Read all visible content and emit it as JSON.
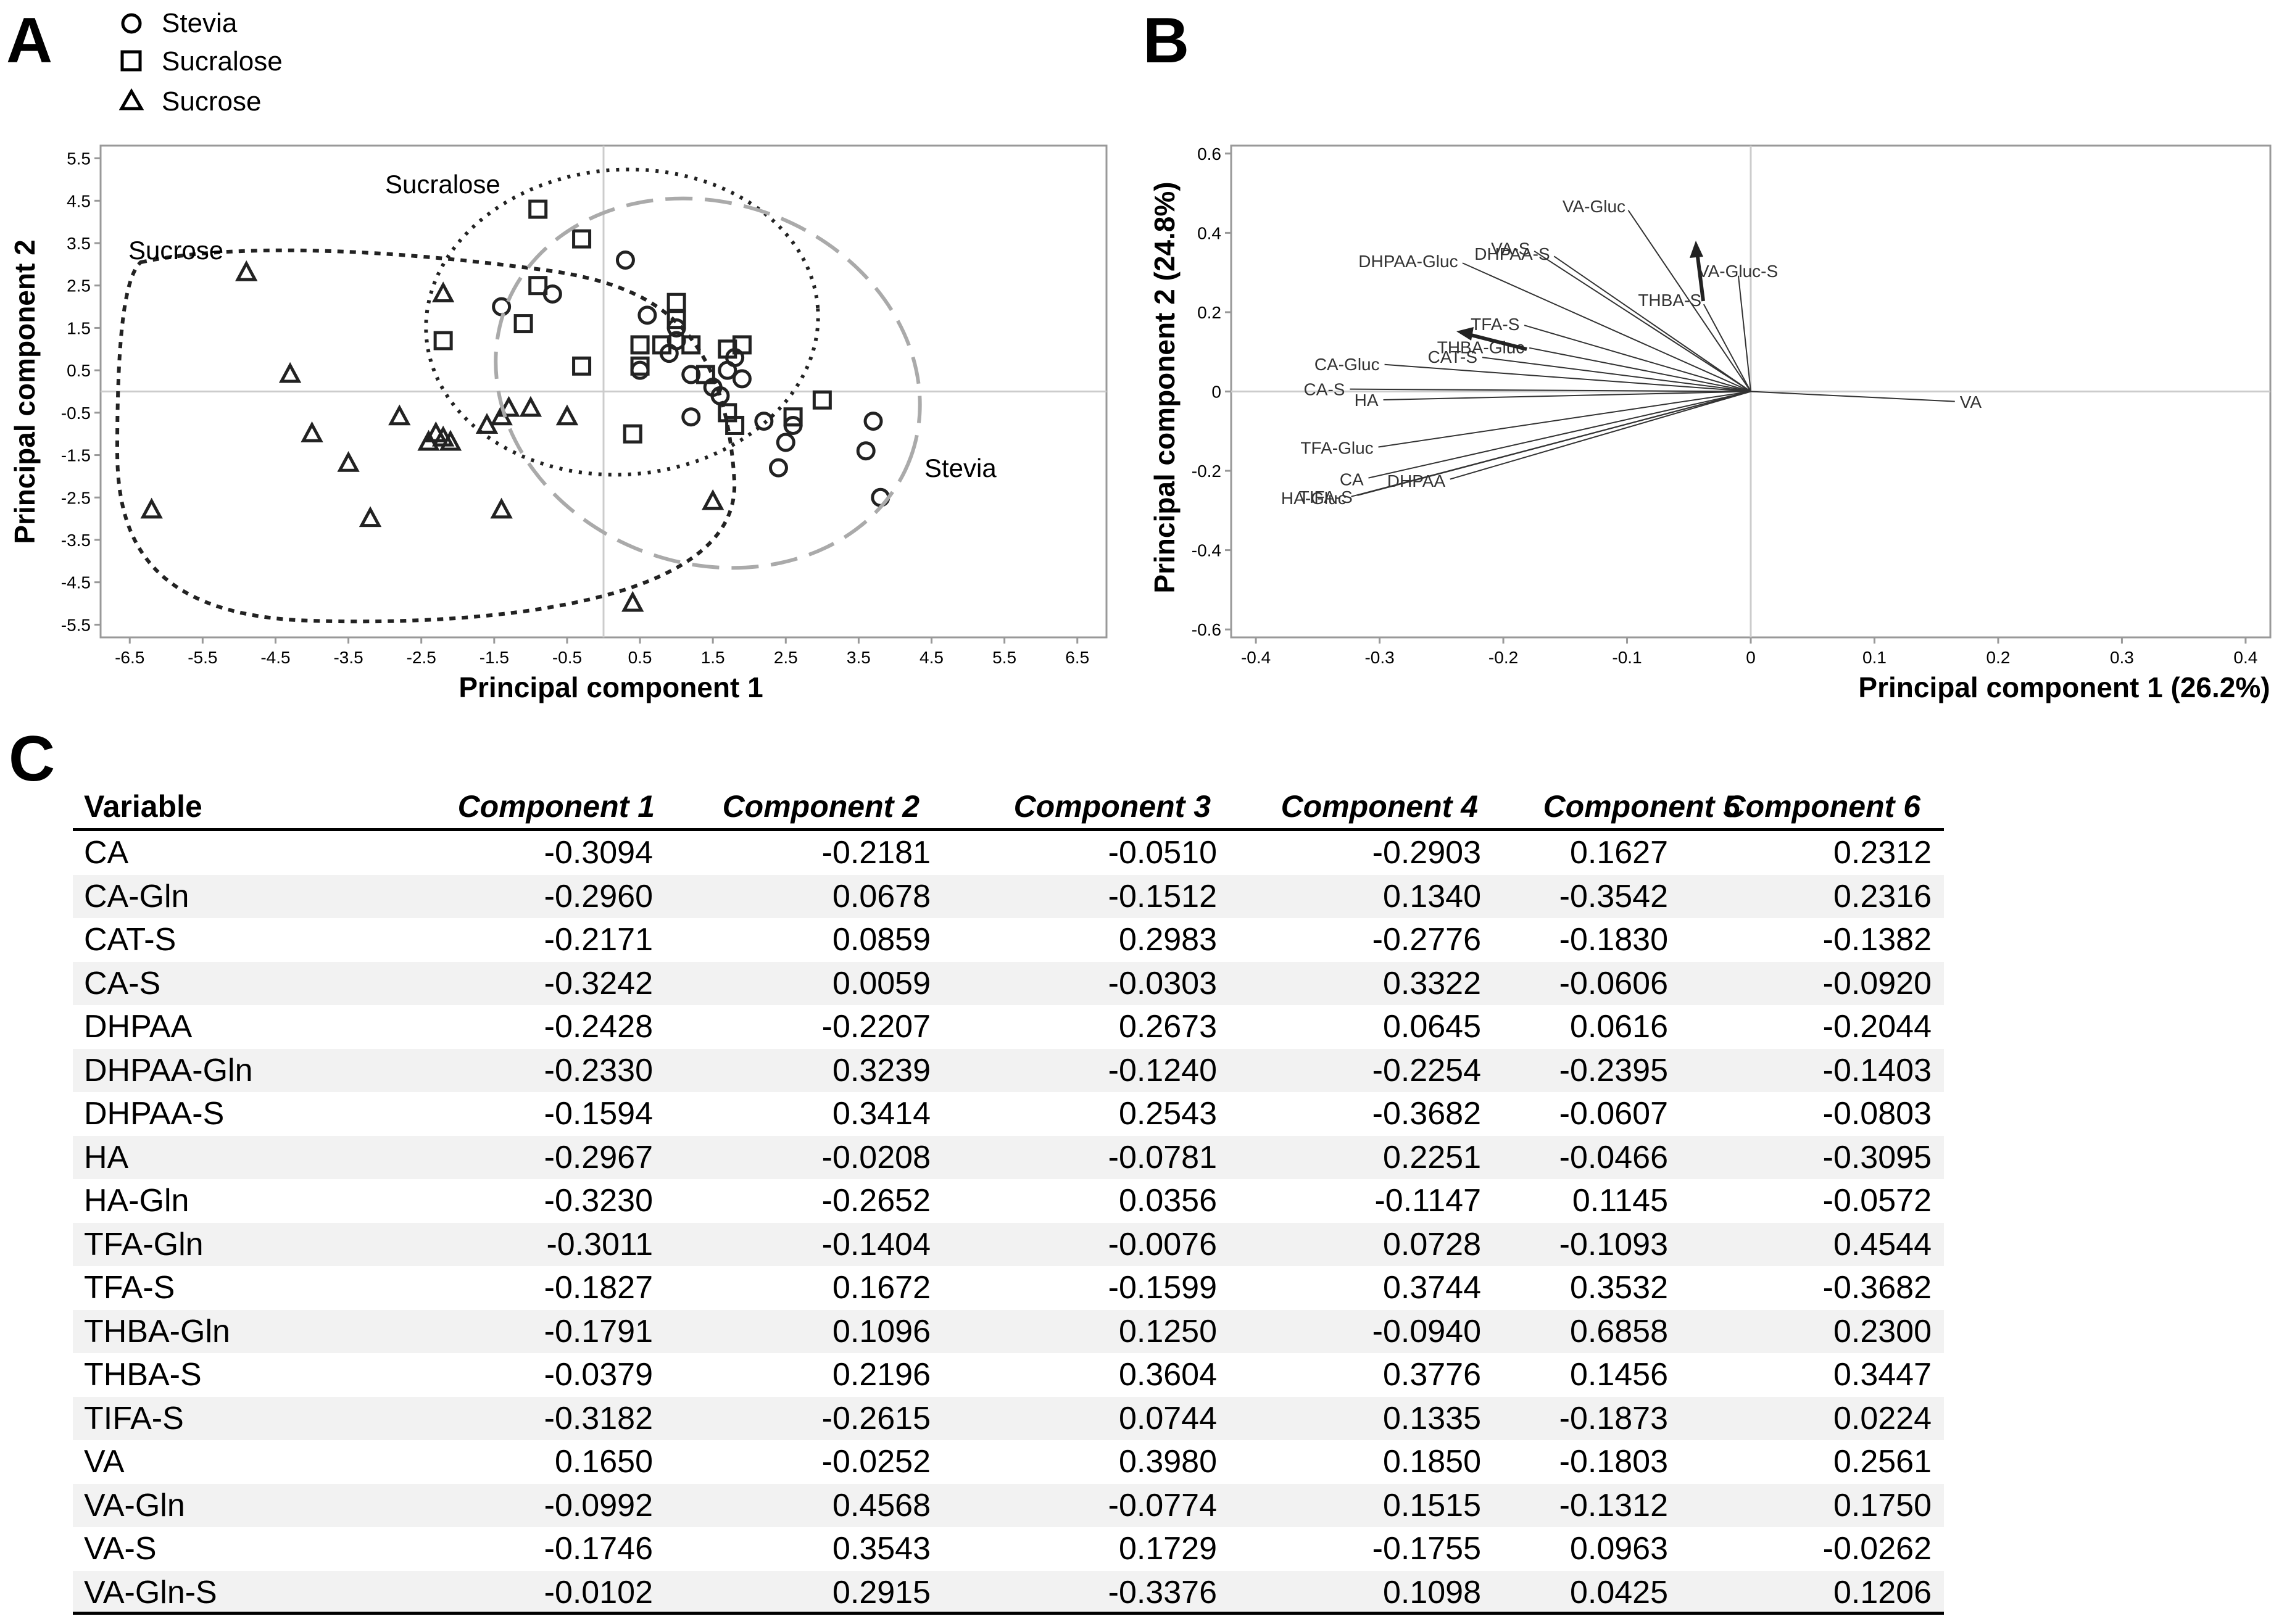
{
  "panels": {
    "a": "A",
    "b": "B",
    "c": "C"
  },
  "panelA": {
    "legend": [
      {
        "marker": "circle",
        "label": "Stevia"
      },
      {
        "marker": "square",
        "label": "Sucralose"
      },
      {
        "marker": "triangle",
        "label": "Sucrose"
      }
    ],
    "group_labels": {
      "sucrose": "Sucrose",
      "sucralose": "Sucralose",
      "stevia": "Stevia"
    }
  },
  "chart_data": [
    {
      "type": "scatter",
      "title": "",
      "xlabel": "Principal component 1",
      "ylabel": "Principal component 2",
      "xlim": [
        -6.9,
        6.9
      ],
      "ylim": [
        -5.8,
        5.8
      ],
      "xticks": [
        "-6.5",
        "-5.5",
        "-4.5",
        "-3.5",
        "-2.5",
        "-1.5",
        "-0.5",
        "0.5",
        "1.5",
        "2.5",
        "3.5",
        "4.5",
        "5.5",
        "6.5"
      ],
      "yticks": [
        "5.5",
        "4.5",
        "3.5",
        "2.5",
        "1.5",
        "0.5",
        "-0.5",
        "-1.5",
        "-2.5",
        "-3.5",
        "-4.5",
        "-5.5"
      ],
      "series": [
        {
          "name": "Stevia",
          "marker": "circle",
          "points": [
            [
              0.3,
              3.1
            ],
            [
              0.6,
              1.8
            ],
            [
              -1.4,
              2.0
            ],
            [
              -0.7,
              2.3
            ],
            [
              1.0,
              1.5
            ],
            [
              1.0,
              1.2
            ],
            [
              0.9,
              0.9
            ],
            [
              1.2,
              0.4
            ],
            [
              0.5,
              0.5
            ],
            [
              1.8,
              0.8
            ],
            [
              1.7,
              0.5
            ],
            [
              1.9,
              0.3
            ],
            [
              1.5,
              0.1
            ],
            [
              1.6,
              -0.1
            ],
            [
              1.2,
              -0.6
            ],
            [
              2.2,
              -0.7
            ],
            [
              2.6,
              -0.8
            ],
            [
              2.5,
              -1.2
            ],
            [
              2.4,
              -1.8
            ],
            [
              3.7,
              -0.7
            ],
            [
              3.6,
              -1.4
            ],
            [
              3.8,
              -2.5
            ]
          ]
        },
        {
          "name": "Sucralose",
          "marker": "square",
          "points": [
            [
              -0.9,
              4.3
            ],
            [
              -0.3,
              3.6
            ],
            [
              -0.9,
              2.5
            ],
            [
              -1.1,
              1.6
            ],
            [
              -2.2,
              1.2
            ],
            [
              -0.3,
              0.6
            ],
            [
              0.4,
              -1.0
            ],
            [
              0.5,
              0.6
            ],
            [
              0.5,
              1.1
            ],
            [
              0.8,
              1.1
            ],
            [
              1.0,
              1.7
            ],
            [
              1.0,
              2.1
            ],
            [
              1.2,
              1.1
            ],
            [
              1.4,
              0.4
            ],
            [
              1.7,
              1.0
            ],
            [
              1.9,
              1.1
            ],
            [
              1.7,
              -0.5
            ],
            [
              1.8,
              -0.8
            ],
            [
              2.6,
              -0.6
            ],
            [
              3.0,
              -0.2
            ]
          ]
        },
        {
          "name": "Sucrose",
          "marker": "triangle",
          "points": [
            [
              -4.9,
              2.8
            ],
            [
              -2.2,
              2.3
            ],
            [
              -4.3,
              0.4
            ],
            [
              -4.0,
              -1.0
            ],
            [
              -3.5,
              -1.7
            ],
            [
              -3.2,
              -3.0
            ],
            [
              -2.8,
              -0.6
            ],
            [
              -2.3,
              -1.0
            ],
            [
              -2.2,
              -1.1
            ],
            [
              -2.1,
              -1.2
            ],
            [
              -2.4,
              -1.2
            ],
            [
              -1.6,
              -0.8
            ],
            [
              -1.4,
              -0.6
            ],
            [
              -1.3,
              -0.4
            ],
            [
              -1.0,
              -0.4
            ],
            [
              -0.5,
              -0.6
            ],
            [
              -1.4,
              -2.8
            ],
            [
              -6.2,
              -2.8
            ],
            [
              1.5,
              -2.6
            ],
            [
              0.4,
              -5.0
            ]
          ]
        }
      ]
    },
    {
      "type": "biplot",
      "title": "",
      "xlabel": "Principal component 1 (26.2%)",
      "ylabel": "Principal component 2 (24.8%)",
      "xlim": [
        -0.42,
        0.42
      ],
      "ylim": [
        -0.62,
        0.62
      ],
      "xticks": [
        -0.4,
        -0.3,
        -0.2,
        -0.1,
        0,
        0.1,
        0.2,
        0.3,
        0.4
      ],
      "yticks": [
        0.6,
        0.4,
        0.2,
        0,
        -0.2,
        -0.4,
        -0.6
      ],
      "loadings": [
        {
          "label": "VA-Gluc",
          "x": -0.099,
          "y": 0.457
        },
        {
          "label": "THBA-S",
          "x": -0.038,
          "y": 0.22
        },
        {
          "label": "VA-Gluc-S",
          "x": -0.01,
          "y": 0.292
        },
        {
          "label": "DHPAA-S",
          "x": -0.159,
          "y": 0.341
        },
        {
          "label": "VA-S",
          "x": -0.175,
          "y": 0.354
        },
        {
          "label": "DHPAA-Gluc",
          "x": -0.233,
          "y": 0.324
        },
        {
          "label": "TFA-S",
          "x": -0.183,
          "y": 0.167
        },
        {
          "label": "THBA-Gluc",
          "x": -0.179,
          "y": 0.11
        },
        {
          "label": "CA-Gluc",
          "x": -0.296,
          "y": 0.068
        },
        {
          "label": "CA-S",
          "x": -0.324,
          "y": 0.006
        },
        {
          "label": "CAT-S",
          "x": -0.217,
          "y": 0.086
        },
        {
          "label": "HA",
          "x": -0.297,
          "y": -0.021
        },
        {
          "label": "TFA-Gluc",
          "x": -0.301,
          "y": -0.14
        },
        {
          "label": "CA",
          "x": -0.309,
          "y": -0.218
        },
        {
          "label": "HA-Gluc",
          "x": -0.323,
          "y": -0.265
        },
        {
          "label": "TIFA-S",
          "x": -0.318,
          "y": -0.262
        },
        {
          "label": "DHPAA",
          "x": -0.243,
          "y": -0.221
        },
        {
          "label": "VA",
          "x": 0.165,
          "y": -0.025
        }
      ]
    },
    {
      "type": "table",
      "columns": [
        "Variable",
        "Component 1",
        "Component 2",
        "Component 3",
        "Component 4",
        "Component 5",
        "Component 6"
      ],
      "rows": [
        [
          "CA",
          "-0.3094",
          "-0.2181",
          "-0.0510",
          "-0.2903",
          "0.1627",
          "0.2312"
        ],
        [
          "CA-Gln",
          "-0.2960",
          "0.0678",
          "-0.1512",
          "0.1340",
          "-0.3542",
          "0.2316"
        ],
        [
          "CAT-S",
          "-0.2171",
          "0.0859",
          "0.2983",
          "-0.2776",
          "-0.1830",
          "-0.1382"
        ],
        [
          "CA-S",
          "-0.3242",
          "0.0059",
          "-0.0303",
          "0.3322",
          "-0.0606",
          "-0.0920"
        ],
        [
          "DHPAA",
          "-0.2428",
          "-0.2207",
          "0.2673",
          "0.0645",
          "0.0616",
          "-0.2044"
        ],
        [
          "DHPAA-Gln",
          "-0.2330",
          "0.3239",
          "-0.1240",
          "-0.2254",
          "-0.2395",
          "-0.1403"
        ],
        [
          "DHPAA-S",
          "-0.1594",
          "0.3414",
          "0.2543",
          "-0.3682",
          "-0.0607",
          "-0.0803"
        ],
        [
          "HA",
          "-0.2967",
          "-0.0208",
          "-0.0781",
          "0.2251",
          "-0.0466",
          "-0.3095"
        ],
        [
          "HA-Gln",
          "-0.3230",
          "-0.2652",
          "0.0356",
          "-0.1147",
          "0.1145",
          "-0.0572"
        ],
        [
          "TFA-Gln",
          "-0.3011",
          "-0.1404",
          "-0.0076",
          "0.0728",
          "-0.1093",
          "0.4544"
        ],
        [
          "TFA-S",
          "-0.1827",
          "0.1672",
          "-0.1599",
          "0.3744",
          "0.3532",
          "-0.3682"
        ],
        [
          "THBA-Gln",
          "-0.1791",
          "0.1096",
          "0.1250",
          "-0.0940",
          "0.6858",
          "0.2300"
        ],
        [
          "THBA-S",
          "-0.0379",
          "0.2196",
          "0.3604",
          "0.3776",
          "0.1456",
          "0.3447"
        ],
        [
          "TIFA-S",
          "-0.3182",
          "-0.2615",
          "0.0744",
          "0.1335",
          "-0.1873",
          "0.0224"
        ],
        [
          "VA",
          "0.1650",
          "-0.0252",
          "0.3980",
          "0.1850",
          "-0.1803",
          "0.2561"
        ],
        [
          "VA-Gln",
          "-0.0992",
          "0.4568",
          "-0.0774",
          "0.1515",
          "-0.1312",
          "0.1750"
        ],
        [
          "VA-S",
          "-0.1746",
          "0.3543",
          "0.1729",
          "-0.1755",
          "0.0963",
          "-0.0262"
        ],
        [
          "VA-Gln-S",
          "-0.0102",
          "0.2915",
          "-0.3376",
          "0.1098",
          "0.0425",
          "0.1206"
        ]
      ]
    }
  ]
}
